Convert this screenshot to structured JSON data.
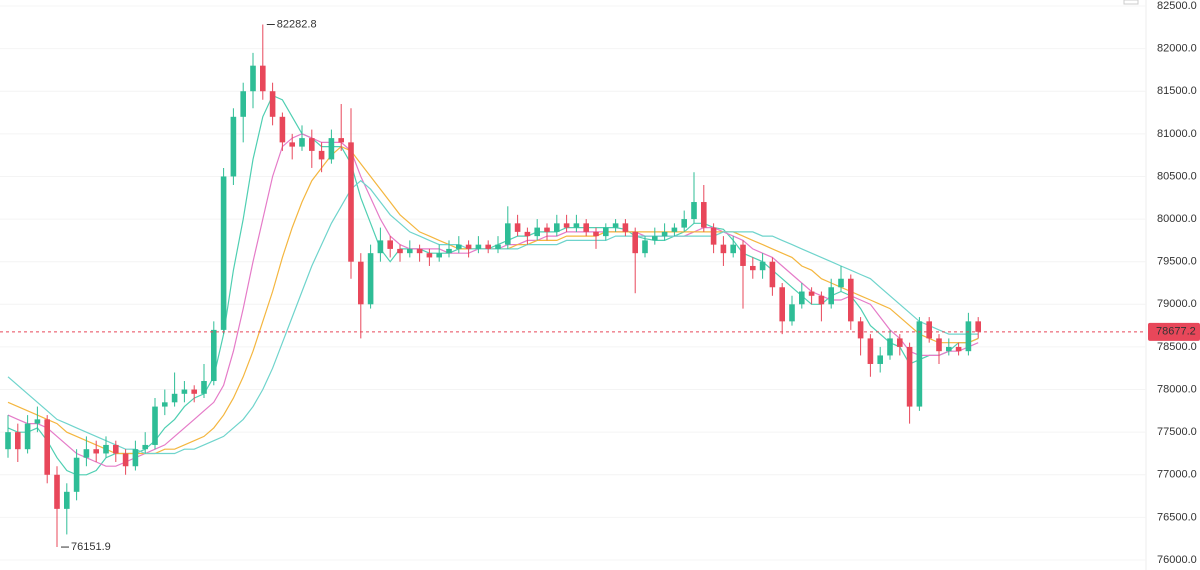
{
  "chart_data": {
    "type": "candlestick",
    "up_color": "#2ebd96",
    "down_color": "#e8475a",
    "last_price_color": "#e8475a",
    "grid": true,
    "ylim": [
      76000,
      82500
    ],
    "yticks": [
      {
        "value": 76000,
        "label": "76000.0"
      },
      {
        "value": 76500,
        "label": "76500.0"
      },
      {
        "value": 77000,
        "label": "77000.0"
      },
      {
        "value": 77500,
        "label": "77500.0"
      },
      {
        "value": 78000,
        "label": "78000.0"
      },
      {
        "value": 78500,
        "label": "78500.0"
      },
      {
        "value": 79000,
        "label": "79000.0"
      },
      {
        "value": 79500,
        "label": "79500.0"
      },
      {
        "value": 80000,
        "label": "80000.0"
      },
      {
        "value": 80500,
        "label": "80500.0"
      },
      {
        "value": 81000,
        "label": "81000.0"
      },
      {
        "value": 81500,
        "label": "81500.0"
      },
      {
        "value": 82000,
        "label": "82000.0"
      },
      {
        "value": 82500,
        "label": "82500.0"
      }
    ],
    "candles": [
      [
        77300,
        77700,
        77200,
        77500
      ],
      [
        77500,
        77600,
        77150,
        77300
      ],
      [
        77300,
        77700,
        77250,
        77600
      ],
      [
        77600,
        77800,
        77500,
        77650
      ],
      [
        77650,
        77700,
        76900,
        77000
      ],
      [
        77000,
        77100,
        76151.9,
        76600
      ],
      [
        76600,
        76900,
        76300,
        76800
      ],
      [
        76800,
        77300,
        76700,
        77200
      ],
      [
        77200,
        77450,
        77100,
        77300
      ],
      [
        77300,
        77400,
        77150,
        77250
      ],
      [
        77250,
        77450,
        77200,
        77350
      ],
      [
        77350,
        77400,
        77150,
        77250
      ],
      [
        77250,
        77300,
        77000,
        77100
      ],
      [
        77100,
        77400,
        77050,
        77300
      ],
      [
        77300,
        77500,
        77250,
        77350
      ],
      [
        77350,
        77900,
        77300,
        77800
      ],
      [
        77800,
        78000,
        77700,
        77850
      ],
      [
        77850,
        78200,
        77800,
        77950
      ],
      [
        77950,
        78100,
        77850,
        78000
      ],
      [
        78000,
        78050,
        77850,
        77950
      ],
      [
        77950,
        78300,
        77900,
        78100
      ],
      [
        78100,
        78800,
        78050,
        78700
      ],
      [
        78700,
        80600,
        78650,
        80500
      ],
      [
        80500,
        81300,
        80400,
        81200
      ],
      [
        81200,
        81600,
        80900,
        81500
      ],
      [
        81500,
        81950,
        81300,
        81800
      ],
      [
        81800,
        82282.8,
        81400,
        81500
      ],
      [
        81500,
        81600,
        81100,
        81200
      ],
      [
        81200,
        81250,
        80800,
        80900
      ],
      [
        80900,
        81000,
        80700,
        80850
      ],
      [
        80850,
        81100,
        80800,
        80950
      ],
      [
        80950,
        81050,
        80600,
        80800
      ],
      [
        80800,
        80900,
        80550,
        80700
      ],
      [
        80700,
        81050,
        80650,
        80950
      ],
      [
        80950,
        81350,
        80800,
        80900
      ],
      [
        80900,
        81300,
        79300,
        79500
      ],
      [
        79500,
        79600,
        78600,
        79000
      ],
      [
        79000,
        79700,
        78950,
        79600
      ],
      [
        79600,
        79900,
        79500,
        79750
      ],
      [
        79750,
        79800,
        79550,
        79650
      ],
      [
        79650,
        79700,
        79500,
        79600
      ],
      [
        79600,
        79750,
        79550,
        79650
      ],
      [
        79650,
        79700,
        79500,
        79600
      ],
      [
        79600,
        79650,
        79450,
        79550
      ],
      [
        79550,
        79700,
        79500,
        79600
      ],
      [
        79600,
        79750,
        79550,
        79650
      ],
      [
        79650,
        79800,
        79600,
        79700
      ],
      [
        79700,
        79750,
        79550,
        79650
      ],
      [
        79650,
        79800,
        79600,
        79700
      ],
      [
        79700,
        79750,
        79600,
        79650
      ],
      [
        79650,
        79800,
        79600,
        79700
      ],
      [
        79700,
        80150,
        79650,
        79950
      ],
      [
        79950,
        80050,
        79800,
        79850
      ],
      [
        79850,
        79900,
        79700,
        79800
      ],
      [
        79800,
        80000,
        79750,
        79900
      ],
      [
        79900,
        79950,
        79750,
        79850
      ],
      [
        79850,
        80050,
        79800,
        79950
      ],
      [
        79950,
        80050,
        79850,
        79900
      ],
      [
        79900,
        80050,
        79850,
        79950
      ],
      [
        79950,
        80000,
        79800,
        79850
      ],
      [
        79850,
        79900,
        79650,
        79800
      ],
      [
        79800,
        79950,
        79750,
        79900
      ],
      [
        79900,
        80000,
        79850,
        79950
      ],
      [
        79950,
        80000,
        79800,
        79850
      ],
      [
        79850,
        79900,
        79130,
        79600
      ],
      [
        79600,
        79800,
        79550,
        79750
      ],
      [
        79750,
        79900,
        79700,
        79800
      ],
      [
        79800,
        79950,
        79750,
        79850
      ],
      [
        79850,
        79950,
        79800,
        79900
      ],
      [
        79900,
        80100,
        79850,
        80000
      ],
      [
        80000,
        80550,
        79950,
        80200
      ],
      [
        80200,
        80400,
        79850,
        79900
      ],
      [
        79900,
        79950,
        79600,
        79700
      ],
      [
        79700,
        79800,
        79450,
        79600
      ],
      [
        79600,
        79800,
        79550,
        79700
      ],
      [
        79700,
        79750,
        78950,
        79450
      ],
      [
        79450,
        79550,
        79300,
        79400
      ],
      [
        79400,
        79600,
        79300,
        79500
      ],
      [
        79500,
        79550,
        79100,
        79200
      ],
      [
        79200,
        79250,
        78650,
        78800
      ],
      [
        78800,
        79100,
        78750,
        79000
      ],
      [
        79000,
        79250,
        78950,
        79150
      ],
      [
        79150,
        79200,
        79000,
        79100
      ],
      [
        79100,
        79150,
        78800,
        79000
      ],
      [
        79000,
        79300,
        78950,
        79200
      ],
      [
        79200,
        79450,
        79150,
        79300
      ],
      [
        79300,
        79350,
        78700,
        78800
      ],
      [
        78800,
        78850,
        78400,
        78600
      ],
      [
        78600,
        78650,
        78150,
        78300
      ],
      [
        78300,
        78500,
        78200,
        78400
      ],
      [
        78400,
        78700,
        78350,
        78600
      ],
      [
        78600,
        78650,
        78400,
        78500
      ],
      [
        78500,
        78550,
        77600,
        77800
      ],
      [
        77800,
        78850,
        77750,
        78800
      ],
      [
        78800,
        78850,
        78550,
        78600
      ],
      [
        78600,
        78650,
        78300,
        78450
      ],
      [
        78450,
        78600,
        78400,
        78500
      ],
      [
        78500,
        78550,
        78400,
        78450
      ],
      [
        78450,
        78900,
        78400,
        78800
      ],
      [
        78800,
        78850,
        78600,
        78677.2
      ]
    ],
    "overlays": [
      {
        "color": "#4fcfb2",
        "values": [
          77550,
          77500,
          77500,
          77550,
          77400,
          77200,
          77050,
          77000,
          77000,
          77050,
          77200,
          77250,
          77250,
          77250,
          77300,
          77400,
          77550,
          77650,
          77800,
          77900,
          77950,
          78150,
          78650,
          79400,
          80000,
          80700,
          81200,
          81450,
          81400,
          81200,
          81000,
          80950,
          80850,
          80850,
          80850,
          80650,
          80250,
          79950,
          79650,
          79500,
          79650,
          79650,
          79650,
          79600,
          79600,
          79600,
          79650,
          79650,
          79650,
          79650,
          79700,
          79750,
          79800,
          79800,
          79850,
          79850,
          79850,
          79900,
          79900,
          79900,
          79900,
          79900,
          79900,
          79880,
          79800,
          79770,
          79750,
          79750,
          79800,
          79850,
          79950,
          79950,
          79900,
          79880,
          79750,
          79600,
          79550,
          79500,
          79400,
          79300,
          79200,
          79100,
          79000,
          79000,
          79100,
          79150,
          79100,
          78950,
          78750,
          78650,
          78550,
          78500,
          78300,
          78350,
          78400,
          78400,
          78450,
          78550,
          78550,
          78600
        ]
      },
      {
        "color": "#e57bc8",
        "values": [
          77700,
          77650,
          77600,
          77600,
          77550,
          77450,
          77350,
          77250,
          77200,
          77150,
          77100,
          77100,
          77150,
          77200,
          77250,
          77300,
          77350,
          77450,
          77550,
          77650,
          77750,
          77850,
          78050,
          78450,
          78950,
          79500,
          80000,
          80500,
          80850,
          80950,
          81000,
          80950,
          80900,
          80900,
          80900,
          80800,
          80500,
          80250,
          80000,
          79800,
          79700,
          79650,
          79650,
          79650,
          79650,
          79600,
          79600,
          79600,
          79650,
          79650,
          79650,
          79700,
          79700,
          79750,
          79750,
          79800,
          79800,
          79850,
          79850,
          79850,
          79850,
          79850,
          79850,
          79850,
          79850,
          79800,
          79800,
          79800,
          79800,
          79800,
          79850,
          79900,
          79900,
          79850,
          79800,
          79750,
          79650,
          79600,
          79550,
          79450,
          79350,
          79250,
          79150,
          79100,
          79050,
          79050,
          79100,
          79050,
          79000,
          78850,
          78700,
          78600,
          78450,
          78400,
          78400,
          78400,
          78450,
          78450,
          78500,
          78550
        ]
      },
      {
        "color": "#f4b63f",
        "values": [
          77850,
          77800,
          77750,
          77700,
          77650,
          77600,
          77500,
          77450,
          77400,
          77350,
          77300,
          77250,
          77250,
          77250,
          77250,
          77250,
          77300,
          77300,
          77350,
          77400,
          77450,
          77550,
          77700,
          77900,
          78150,
          78450,
          78800,
          79150,
          79550,
          79900,
          80200,
          80450,
          80600,
          80750,
          80850,
          80800,
          80650,
          80500,
          80350,
          80200,
          80050,
          79950,
          79850,
          79800,
          79750,
          79700,
          79650,
          79650,
          79650,
          79650,
          79650,
          79650,
          79700,
          79700,
          79750,
          79750,
          79750,
          79800,
          79800,
          79800,
          79800,
          79850,
          79850,
          79850,
          79850,
          79850,
          79850,
          79850,
          79850,
          79850,
          79850,
          79850,
          79850,
          79850,
          79850,
          79800,
          79750,
          79700,
          79650,
          79600,
          79550,
          79450,
          79400,
          79300,
          79250,
          79200,
          79150,
          79100,
          79050,
          79000,
          78950,
          78850,
          78750,
          78650,
          78600,
          78550,
          78550,
          78550,
          78550,
          78600
        ]
      },
      {
        "color": "#6fd4cc",
        "values": [
          78150,
          78050,
          77950,
          77850,
          77750,
          77650,
          77600,
          77550,
          77500,
          77450,
          77400,
          77350,
          77300,
          77300,
          77250,
          77250,
          77250,
          77250,
          77300,
          77300,
          77350,
          77400,
          77450,
          77550,
          77650,
          77800,
          78000,
          78250,
          78550,
          78850,
          79150,
          79450,
          79700,
          79950,
          80150,
          80350,
          80450,
          80350,
          80200,
          80050,
          79950,
          79850,
          79800,
          79750,
          79700,
          79700,
          79700,
          79650,
          79650,
          79650,
          79650,
          79650,
          79650,
          79700,
          79700,
          79700,
          79700,
          79750,
          79750,
          79750,
          79750,
          79750,
          79800,
          79800,
          79800,
          79800,
          79800,
          79800,
          79800,
          79800,
          79800,
          79800,
          79800,
          79850,
          79850,
          79850,
          79850,
          79800,
          79800,
          79750,
          79700,
          79650,
          79600,
          79550,
          79500,
          79450,
          79400,
          79350,
          79300,
          79200,
          79100,
          79000,
          78900,
          78800,
          78750,
          78700,
          78650,
          78650,
          78650,
          78650
        ]
      }
    ]
  }
}
